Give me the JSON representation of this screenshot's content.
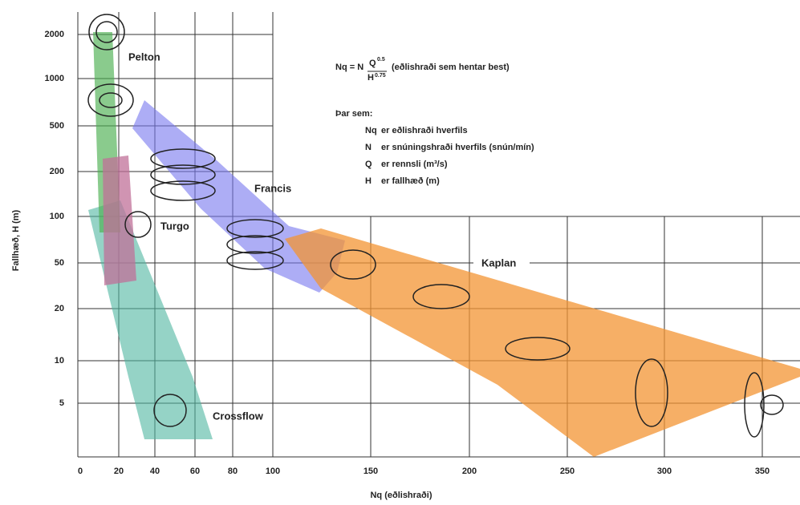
{
  "y_axis": {
    "title": "Fallhæð, H (m)",
    "ticks": [
      "2000",
      "1000",
      "500",
      "200",
      "100",
      "50",
      "20",
      "10",
      "5"
    ]
  },
  "x_axis": {
    "title": "Nq (eðlishraði)",
    "ticks": [
      "0",
      "20",
      "40",
      "60",
      "80",
      "100",
      "150",
      "200",
      "250",
      "300",
      "350"
    ]
  },
  "regions": [
    {
      "label": "Pelton"
    },
    {
      "label": "Turgo"
    },
    {
      "label": "Francis"
    },
    {
      "label": "Kaplan"
    },
    {
      "label": "Crossflow"
    }
  ],
  "formula": {
    "lhs": "Nq = N",
    "numerator": "Q",
    "numerator_exp": "0.5",
    "denominator": "H",
    "denominator_exp": "0.75",
    "note": "(eðlishraði sem hentar best)"
  },
  "legend": {
    "heading": "Þar sem:",
    "lines": [
      {
        "symbol": "Nq",
        "text": "er eðlishraði hverfils"
      },
      {
        "symbol": "N",
        "text": "er snúningshraði hverfils (snún/mín)"
      },
      {
        "symbol": "Q",
        "text": "er rennsli (m³/s)"
      },
      {
        "symbol": "H",
        "text": "er fallhæð (m)"
      }
    ]
  }
}
